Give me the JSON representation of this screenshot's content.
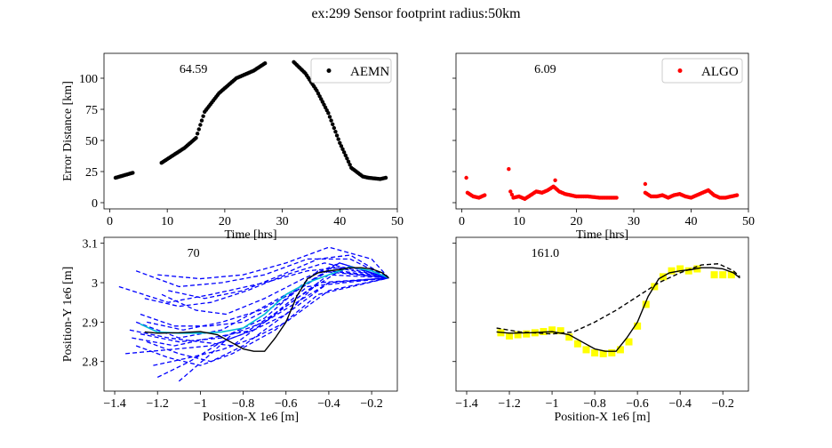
{
  "figure": {
    "suptitle": "ex:299  Sensor footprint radius:50km"
  },
  "chart_data": [
    {
      "id": "aemn",
      "type": "scatter",
      "annotation": "64.59",
      "xlabel": "Time [hrs]",
      "ylabel": "Error Distance [km]",
      "xlim": [
        -1,
        50
      ],
      "ylim": [
        -5,
        120
      ],
      "xticks": [
        0,
        10,
        20,
        30,
        40,
        50
      ],
      "yticks": [
        0,
        25,
        50,
        75,
        100
      ],
      "legend": "top-right",
      "series": [
        {
          "name": "AEMN",
          "color": "#000000",
          "segments": [
            {
              "x": [
                1.0,
                4.0
              ],
              "y": [
                20,
                24
              ]
            },
            {
              "x": [
                9.0,
                13.0,
                15.0,
                16.5,
                19.0,
                22.0,
                25.0,
                27.0
              ],
              "y": [
                32,
                44,
                52,
                73,
                88,
                100,
                106,
                112
              ]
            },
            {
              "x": [
                32.0,
                34.0,
                36.0,
                38.0,
                40.0,
                42.0,
                44.0,
                45.0,
                47.0,
                48.0
              ],
              "y": [
                113,
                104,
                90,
                72,
                48,
                28,
                21,
                20,
                19,
                20
              ]
            }
          ]
        }
      ]
    },
    {
      "id": "algo",
      "type": "scatter",
      "annotation": "6.09",
      "xlabel": "Time [hrs]",
      "ylabel": "",
      "xlim": [
        -1,
        50
      ],
      "ylim": [
        -5,
        120
      ],
      "xticks": [
        0,
        10,
        20,
        30,
        40,
        50
      ],
      "yticks": [
        0,
        25,
        50,
        75,
        100
      ],
      "legend": "top-right",
      "series": [
        {
          "name": "ALGO",
          "color": "#ff0000",
          "segments": [
            {
              "x": [
                1,
                2,
                3,
                4
              ],
              "y": [
                8,
                5,
                4,
                6
              ]
            },
            {
              "x": [
                8.5,
                9,
                10,
                11,
                12,
                13,
                14,
                15,
                16,
                17,
                18,
                19,
                20,
                22,
                24,
                26,
                27
              ],
              "y": [
                9,
                4,
                5,
                3,
                6,
                9,
                8,
                10,
                13,
                9,
                7,
                6,
                5,
                5,
                4,
                4,
                4
              ]
            },
            {
              "x": [
                32,
                33,
                34,
                35,
                36,
                37,
                38,
                39,
                40,
                41,
                42,
                43,
                44,
                45,
                46,
                47,
                48
              ],
              "y": [
                8,
                5,
                5,
                6,
                4,
                6,
                7,
                5,
                4,
                6,
                8,
                10,
                6,
                4,
                4,
                5,
                6
              ]
            }
          ],
          "outliers": {
            "x": [
              0.8,
              8.2,
              16.3,
              32.0
            ],
            "y": [
              20,
              27,
              18,
              15
            ]
          }
        }
      ]
    },
    {
      "id": "paths",
      "type": "line",
      "annotation": "70",
      "xlabel": "Position-X 1e6 [m]",
      "ylabel": "Position-Y 1e6 [m]",
      "xlim": [
        -1.45,
        -0.08
      ],
      "ylim": [
        2.725,
        3.115
      ],
      "xticks": [
        -1.4,
        -1.2,
        -1.0,
        -0.8,
        -0.6,
        -0.4,
        -0.2
      ],
      "yticks": [
        2.8,
        2.9,
        3.0,
        3.1
      ],
      "colors": {
        "truth": "#000000",
        "estimate": "#00bcd4",
        "particles": "#0000ff"
      },
      "truth": {
        "x": [
          -1.26,
          -1.2,
          -1.1,
          -1.0,
          -0.92,
          -0.86,
          -0.8,
          -0.75,
          -0.7,
          -0.65,
          -0.6,
          -0.55,
          -0.5,
          -0.45,
          -0.4,
          -0.35,
          -0.3,
          -0.25,
          -0.2,
          -0.15,
          -0.12
        ],
        "y": [
          2.875,
          2.872,
          2.873,
          2.876,
          2.868,
          2.85,
          2.832,
          2.826,
          2.826,
          2.86,
          2.9,
          2.965,
          3.01,
          3.025,
          3.03,
          3.033,
          3.038,
          3.038,
          3.035,
          3.025,
          3.012
        ]
      },
      "estimate": {
        "x": [
          -1.28,
          -1.2,
          -1.1,
          -1.0,
          -0.9,
          -0.8,
          -0.7,
          -0.6,
          -0.5,
          -0.4,
          -0.3,
          -0.2,
          -0.12
        ],
        "y": [
          2.895,
          2.875,
          2.872,
          2.872,
          2.875,
          2.885,
          2.92,
          2.97,
          3.0,
          3.02,
          3.04,
          3.03,
          3.012
        ]
      },
      "particles": [
        {
          "x": [
            -1.38,
            -1.15,
            -0.95,
            -0.7,
            -0.5,
            -0.3,
            -0.12
          ],
          "y": [
            2.99,
            2.95,
            2.97,
            3.0,
            3.03,
            3.04,
            3.012
          ]
        },
        {
          "x": [
            -1.3,
            -1.1,
            -0.9,
            -0.7,
            -0.5,
            -0.3,
            -0.12
          ],
          "y": [
            3.03,
            2.99,
            3.0,
            3.02,
            3.06,
            3.06,
            3.012
          ]
        },
        {
          "x": [
            -1.2,
            -1.0,
            -0.8,
            -0.6,
            -0.4,
            -0.2,
            -0.12
          ],
          "y": [
            3.02,
            3.01,
            3.02,
            3.05,
            3.09,
            3.06,
            3.012
          ]
        },
        {
          "x": [
            -1.15,
            -0.98,
            -0.8,
            -0.62,
            -0.45,
            -0.3,
            -0.12
          ],
          "y": [
            2.98,
            2.96,
            2.98,
            3.02,
            3.06,
            3.07,
            3.012
          ]
        },
        {
          "x": [
            -1.3,
            -1.1,
            -0.9,
            -0.7,
            -0.5,
            -0.35,
            -0.12
          ],
          "y": [
            2.9,
            2.86,
            2.88,
            2.94,
            3.0,
            3.05,
            3.012
          ]
        },
        {
          "x": [
            -1.28,
            -1.1,
            -0.9,
            -0.7,
            -0.55,
            -0.4,
            -0.12
          ],
          "y": [
            2.87,
            2.85,
            2.86,
            2.91,
            2.98,
            3.03,
            3.012
          ]
        },
        {
          "x": [
            -1.35,
            -1.15,
            -0.95,
            -0.8,
            -0.6,
            -0.4,
            -0.12
          ],
          "y": [
            2.82,
            2.83,
            2.84,
            2.87,
            2.94,
            3.02,
            3.012
          ]
        },
        {
          "x": [
            -1.25,
            -1.1,
            -0.95,
            -0.8,
            -0.6,
            -0.4,
            -0.12
          ],
          "y": [
            2.85,
            2.82,
            2.8,
            2.84,
            2.92,
            3.0,
            3.012
          ]
        },
        {
          "x": [
            -1.22,
            -1.05,
            -0.9,
            -0.75,
            -0.6,
            -0.4,
            -0.12
          ],
          "y": [
            2.79,
            2.81,
            2.83,
            2.86,
            2.9,
            2.98,
            3.012
          ]
        },
        {
          "x": [
            -1.3,
            -1.15,
            -1.0,
            -0.85,
            -0.65,
            -0.45,
            -0.12
          ],
          "y": [
            2.84,
            2.81,
            2.79,
            2.82,
            2.88,
            2.97,
            3.012
          ]
        },
        {
          "x": [
            -1.2,
            -1.05,
            -0.9,
            -0.75,
            -0.6,
            -0.45,
            -0.12
          ],
          "y": [
            2.76,
            2.8,
            2.85,
            2.88,
            2.92,
            3.0,
            3.012
          ]
        },
        {
          "x": [
            -1.1,
            -0.95,
            -0.85,
            -0.7,
            -0.55,
            -0.4,
            -0.12
          ],
          "y": [
            2.75,
            2.82,
            2.87,
            2.9,
            2.95,
            3.0,
            3.012
          ]
        },
        {
          "x": [
            -1.33,
            -1.15,
            -1.0,
            -0.85,
            -0.7,
            -0.5,
            -0.12
          ],
          "y": [
            2.88,
            2.86,
            2.85,
            2.84,
            2.9,
            2.99,
            3.012
          ]
        },
        {
          "x": [
            -1.28,
            -1.12,
            -0.96,
            -0.8,
            -0.62,
            -0.45,
            -0.12
          ],
          "y": [
            2.92,
            2.89,
            2.89,
            2.9,
            2.95,
            3.03,
            3.012
          ]
        },
        {
          "x": [
            -1.25,
            -1.08,
            -0.9,
            -0.72,
            -0.55,
            -0.38,
            -0.12
          ],
          "y": [
            2.9,
            2.88,
            2.9,
            2.93,
            2.98,
            3.04,
            3.012
          ]
        },
        {
          "x": [
            -1.18,
            -1.02,
            -0.88,
            -0.7,
            -0.52,
            -0.35,
            -0.12
          ],
          "y": [
            2.97,
            2.93,
            2.92,
            2.96,
            3.01,
            3.05,
            3.012
          ]
        },
        {
          "x": [
            -1.26,
            -1.1,
            -0.95,
            -0.78,
            -0.6,
            -0.42,
            -0.12
          ],
          "y": [
            2.96,
            2.94,
            2.95,
            2.98,
            3.02,
            3.05,
            3.012
          ]
        },
        {
          "x": [
            -1.32,
            -1.12,
            -0.95,
            -0.75,
            -0.55,
            -0.35,
            -0.12
          ],
          "y": [
            2.86,
            2.84,
            2.86,
            2.88,
            2.96,
            3.03,
            3.012
          ]
        }
      ]
    },
    {
      "id": "recon",
      "type": "line",
      "annotation": "161.0",
      "xlabel": "Position-X 1e6 [m]",
      "ylabel": "",
      "xlim": [
        -1.45,
        -0.08
      ],
      "ylim": [
        2.725,
        3.115
      ],
      "xticks": [
        -1.4,
        -1.2,
        -1.0,
        -0.8,
        -0.6,
        -0.4,
        -0.2
      ],
      "yticks": [
        2.8,
        2.9,
        3.0,
        3.1
      ],
      "colors": {
        "truth": "#000000",
        "dashed": "#000000",
        "points": "#ffff00"
      },
      "truth": {
        "x": [
          -1.26,
          -1.2,
          -1.1,
          -1.0,
          -0.92,
          -0.86,
          -0.8,
          -0.75,
          -0.7,
          -0.65,
          -0.6,
          -0.55,
          -0.5,
          -0.45,
          -0.4,
          -0.35,
          -0.3,
          -0.25,
          -0.2,
          -0.15,
          -0.12
        ],
        "y": [
          2.875,
          2.872,
          2.873,
          2.876,
          2.868,
          2.85,
          2.832,
          2.826,
          2.826,
          2.86,
          2.9,
          2.965,
          3.01,
          3.025,
          3.03,
          3.033,
          3.038,
          3.038,
          3.035,
          3.025,
          3.012
        ]
      },
      "dashed": {
        "x": [
          -1.26,
          -1.15,
          -1.0,
          -0.9,
          -0.8,
          -0.7,
          -0.6,
          -0.5,
          -0.4,
          -0.3,
          -0.22,
          -0.15,
          -0.12
        ],
        "y": [
          2.885,
          2.875,
          2.87,
          2.875,
          2.9,
          2.93,
          2.965,
          3.0,
          3.025,
          3.045,
          3.048,
          3.03,
          3.015
        ]
      },
      "points": {
        "x": [
          -1.24,
          -1.2,
          -1.16,
          -1.12,
          -1.08,
          -1.04,
          -1.0,
          -0.96,
          -0.92,
          -0.88,
          -0.84,
          -0.8,
          -0.76,
          -0.72,
          -0.68,
          -0.64,
          -0.6,
          -0.56,
          -0.52,
          -0.48,
          -0.44,
          -0.4,
          -0.36,
          -0.32,
          -0.24,
          -0.2,
          -0.16
        ],
        "y": [
          2.873,
          2.865,
          2.868,
          2.87,
          2.873,
          2.876,
          2.88,
          2.878,
          2.862,
          2.845,
          2.83,
          2.822,
          2.82,
          2.822,
          2.83,
          2.85,
          2.89,
          2.945,
          2.99,
          3.015,
          3.03,
          3.035,
          3.03,
          3.035,
          3.02,
          3.02,
          3.02
        ]
      }
    }
  ]
}
